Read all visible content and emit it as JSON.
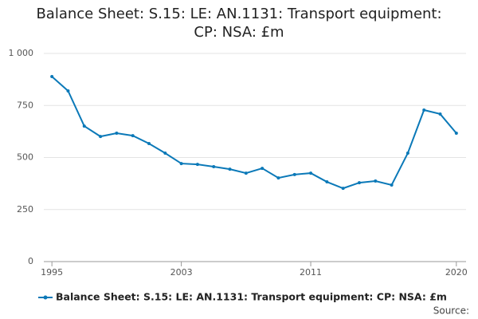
{
  "chart_data": {
    "type": "line",
    "title": "Balance Sheet: S.15: LE: AN.1131: Transport equipment: CP: NSA: £m",
    "x": [
      1995,
      1996,
      1997,
      1998,
      1999,
      2000,
      2001,
      2002,
      2003,
      2004,
      2005,
      2006,
      2007,
      2008,
      2009,
      2010,
      2011,
      2012,
      2013,
      2014,
      2015,
      2016,
      2017,
      2018,
      2019,
      2020
    ],
    "series": [
      {
        "name": "Balance Sheet: S.15: LE: AN.1131: Transport equipment: CP: NSA: £m",
        "color": "#0b79b8",
        "values": [
          889,
          820,
          651,
          601,
          617,
          605,
          567,
          521,
          471,
          467,
          456,
          444,
          425,
          448,
          402,
          418,
          425,
          383,
          352,
          379,
          387,
          368,
          521,
          728,
          709,
          617
        ]
      }
    ],
    "xlim": [
      1994.5,
      2020.6
    ],
    "xticks": [
      1995,
      2003,
      2011,
      2020
    ],
    "ylim": [
      0,
      1000
    ],
    "yticks": [
      0,
      250,
      500,
      750,
      {
        "value": 1000,
        "label": "1 000"
      }
    ],
    "grid": true,
    "legend": "bottom",
    "source": "Source:"
  }
}
